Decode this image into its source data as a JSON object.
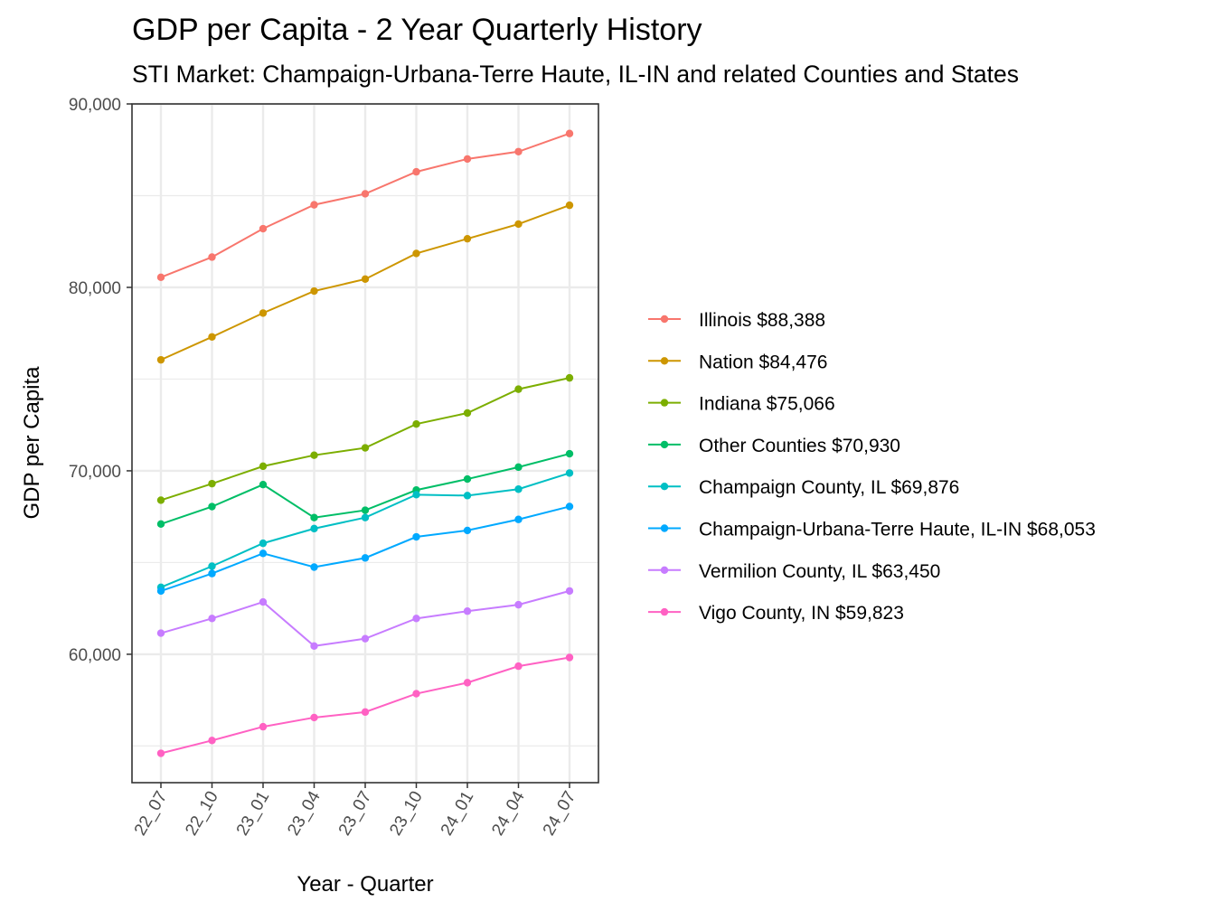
{
  "chart_data": {
    "type": "line",
    "title": "GDP per Capita - 2 Year Quarterly History",
    "subtitle": "STI Market: Champaign-Urbana-Terre Haute, IL-IN and related Counties and States",
    "xlabel": "Year - Quarter",
    "ylabel": "GDP per Capita",
    "categories": [
      "22_07",
      "22_10",
      "23_01",
      "23_04",
      "23_07",
      "23_10",
      "24_01",
      "24_04",
      "24_07"
    ],
    "ylim": [
      53000,
      90000
    ],
    "yticks": [
      60000,
      70000,
      80000,
      90000
    ],
    "ytick_labels": [
      "60,000",
      "70,000",
      "80,000",
      "90,000"
    ],
    "grid": true,
    "legend_position": "right",
    "series": [
      {
        "name": "Illinois $88,388",
        "color": "#F8766D",
        "values": [
          80550,
          81650,
          83200,
          84500,
          85100,
          86300,
          87000,
          87400,
          88388
        ]
      },
      {
        "name": "Nation $84,476",
        "color": "#CD9600",
        "values": [
          76050,
          77300,
          78600,
          79800,
          80450,
          81850,
          82650,
          83450,
          84476
        ]
      },
      {
        "name": "Indiana $75,066",
        "color": "#7CAE00",
        "values": [
          68400,
          69300,
          70250,
          70850,
          71250,
          72550,
          73150,
          74450,
          75066
        ]
      },
      {
        "name": "Other Counties $70,930",
        "color": "#00BE67",
        "values": [
          67100,
          68050,
          69250,
          67450,
          67850,
          68950,
          69550,
          70200,
          70930
        ]
      },
      {
        "name": "Champaign County, IL $69,876",
        "color": "#00BFC4",
        "values": [
          63650,
          64800,
          66050,
          66850,
          67450,
          68700,
          68650,
          69000,
          69876
        ]
      },
      {
        "name": "Champaign-Urbana-Terre Haute, IL-IN $68,053",
        "color": "#00A9FF",
        "values": [
          63450,
          64400,
          65500,
          64750,
          65250,
          66400,
          66750,
          67350,
          68053
        ]
      },
      {
        "name": "Vermilion County, IL $63,450",
        "color": "#C77CFF",
        "values": [
          61150,
          61950,
          62850,
          60450,
          60850,
          61950,
          62350,
          62700,
          63450
        ]
      },
      {
        "name": "Vigo County, IN $59,823",
        "color": "#FF61C3",
        "values": [
          54600,
          55300,
          56050,
          56550,
          56850,
          57850,
          58450,
          59350,
          59823
        ]
      }
    ]
  }
}
